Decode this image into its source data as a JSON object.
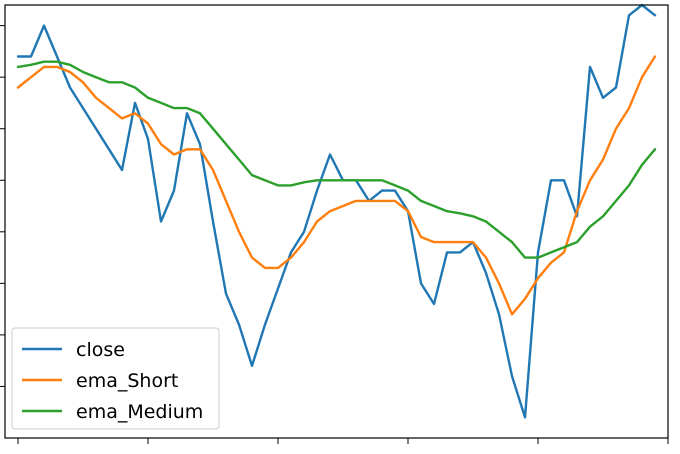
{
  "chart_data": {
    "type": "line",
    "title": "",
    "xlabel": "",
    "ylabel": "",
    "xlim": [
      -1.0,
      50.0
    ],
    "ylim": [
      0.0,
      42.0
    ],
    "x_ticks": [
      0,
      10,
      20,
      30,
      40,
      50
    ],
    "y_ticks": [
      0,
      5,
      10,
      15,
      20,
      25,
      30,
      35,
      40
    ],
    "grid": false,
    "legend": "lower left",
    "x": [
      0,
      1,
      2,
      3,
      4,
      5,
      6,
      7,
      8,
      9,
      10,
      11,
      12,
      13,
      14,
      15,
      16,
      17,
      18,
      19,
      20,
      21,
      22,
      23,
      24,
      25,
      26,
      27,
      28,
      29,
      30,
      31,
      32,
      33,
      34,
      35,
      36,
      37,
      38,
      39,
      40,
      41,
      42,
      43,
      44,
      45,
      46,
      47,
      48,
      49
    ],
    "series": [
      {
        "name": "close",
        "color": "#1f77b4",
        "values": [
          37.0,
          37.0,
          40.0,
          37.0,
          34.0,
          32.0,
          30.0,
          28.0,
          26.0,
          32.5,
          29.0,
          21.0,
          24.0,
          31.5,
          28.5,
          21.0,
          14.0,
          11.0,
          7.0,
          11.0,
          14.5,
          18.0,
          20.0,
          24.0,
          27.5,
          25.0,
          25.0,
          23.0,
          24.0,
          24.0,
          22.0,
          15.0,
          13.0,
          18.0,
          18.0,
          19.0,
          16.0,
          12.0,
          6.0,
          2.0,
          18.0,
          25.0,
          25.0,
          21.5,
          36.0,
          33.0,
          34.0,
          41.0,
          42.0,
          41.0
        ]
      },
      {
        "name": "ema_Short",
        "color": "#ff7f0e",
        "values": [
          34.0,
          35.0,
          36.0,
          36.0,
          35.5,
          34.5,
          33.0,
          32.0,
          31.0,
          31.5,
          30.5,
          28.5,
          27.5,
          28.0,
          28.0,
          26.0,
          23.0,
          20.0,
          17.5,
          16.5,
          16.5,
          17.5,
          19.0,
          21.0,
          22.0,
          22.5,
          23.0,
          23.0,
          23.0,
          23.0,
          22.0,
          19.5,
          19.0,
          19.0,
          19.0,
          19.0,
          17.5,
          15.0,
          12.0,
          13.5,
          15.5,
          17.0,
          18.0,
          22.0,
          25.0,
          27.0,
          30.0,
          32.0,
          35.0,
          37.0
        ]
      },
      {
        "name": "ema_Medium",
        "color": "#2ca02c",
        "values": [
          36.0,
          36.2,
          36.5,
          36.5,
          36.2,
          35.5,
          35.0,
          34.5,
          34.5,
          34.0,
          33.0,
          32.5,
          32.0,
          32.0,
          31.5,
          30.0,
          28.5,
          27.0,
          25.5,
          25.0,
          24.5,
          24.5,
          24.8,
          25.0,
          25.0,
          25.0,
          25.0,
          25.0,
          25.0,
          24.5,
          24.0,
          23.0,
          22.5,
          22.0,
          21.8,
          21.5,
          21.0,
          20.0,
          19.0,
          17.5,
          17.5,
          18.0,
          18.5,
          19.0,
          20.5,
          21.5,
          23.0,
          24.5,
          26.5,
          28.0
        ]
      }
    ]
  }
}
